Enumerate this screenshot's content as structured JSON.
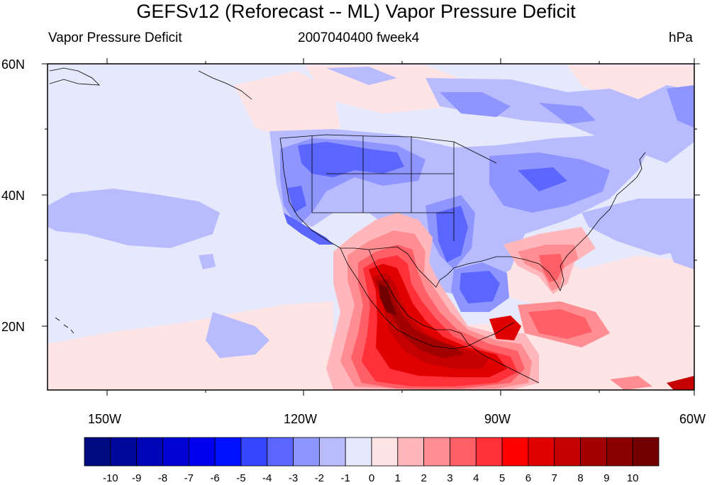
{
  "title": "GEFSv12 (Reforecast -- ML) Vapor Pressure Deficit",
  "subtitle_left": "Vapor Pressure Deficit",
  "subtitle_center": "2007040400 fweek4",
  "subtitle_right": "hPa",
  "map": {
    "lon_range": [
      -160,
      -60
    ],
    "lat_range": [
      10,
      60
    ],
    "lat_labels": [
      "60N",
      "40N",
      "20N"
    ],
    "lon_labels": [
      "150W",
      "120W",
      "90W",
      "60W"
    ],
    "background_color": "#e6e8fb"
  },
  "colorbar": {
    "labels": [
      "-10",
      "-9",
      "-8",
      "-7",
      "-6",
      "-5",
      "-4",
      "-3",
      "-2",
      "-1",
      "0",
      "1",
      "2",
      "3",
      "4",
      "5",
      "6",
      "7",
      "8",
      "9",
      "10"
    ],
    "colors": [
      "#000a80",
      "#00079c",
      "#0005b8",
      "#0003d4",
      "#0000ef",
      "#0011ff",
      "#3646ff",
      "#5b66ff",
      "#8f95ff",
      "#b8bcff",
      "#e6e8fb",
      "#ffe4e6",
      "#ffb7bb",
      "#ff8d92",
      "#ff5f66",
      "#ff3038",
      "#ff0000",
      "#e00000",
      "#c40000",
      "#a30000",
      "#8b0000",
      "#730000"
    ]
  }
}
